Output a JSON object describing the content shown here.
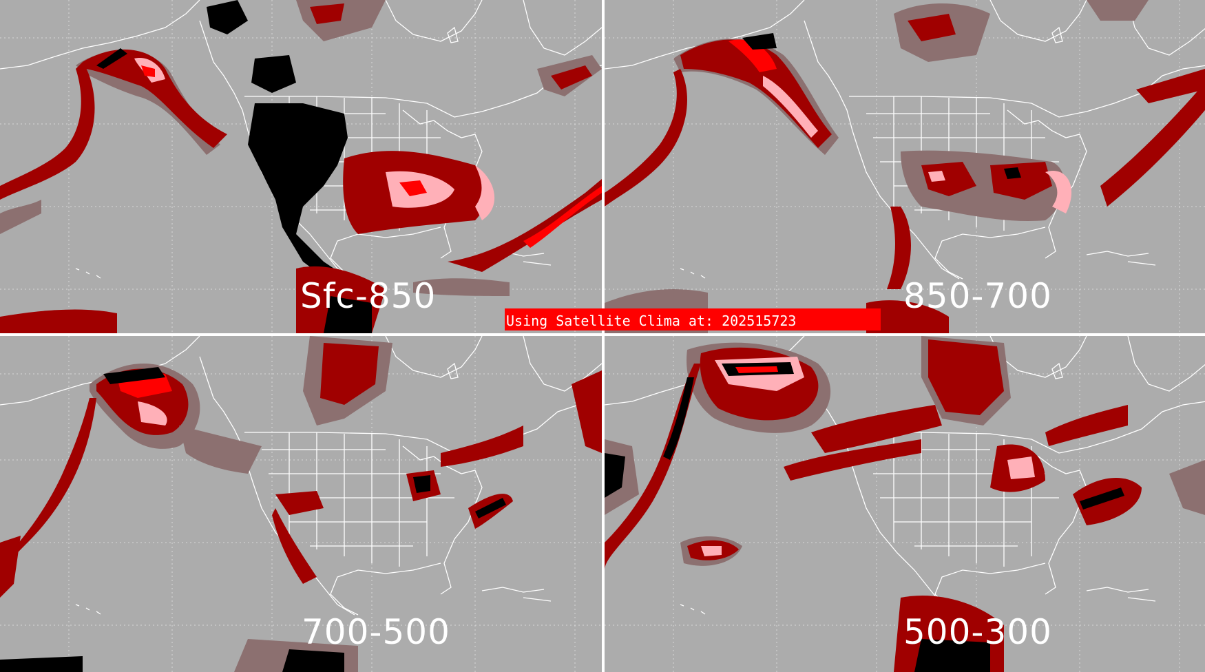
{
  "panels": [
    {
      "id": "sfc",
      "label": "Sfc-850"
    },
    {
      "id": "850",
      "label": "850-700"
    },
    {
      "id": "700",
      "label": "700-500"
    },
    {
      "id": "500",
      "label": "500-300"
    }
  ],
  "banner": {
    "text": "Using Satellite Clima at: 202515723"
  },
  "legend_colors": {
    "background": "#acacac",
    "low": "#8c7070",
    "moderate": "#a00000",
    "high": "#ff0000",
    "very_high": "#ffb0b8",
    "missing": "#000000",
    "boundaries": "#ffffff",
    "banner": "#ff0000"
  }
}
